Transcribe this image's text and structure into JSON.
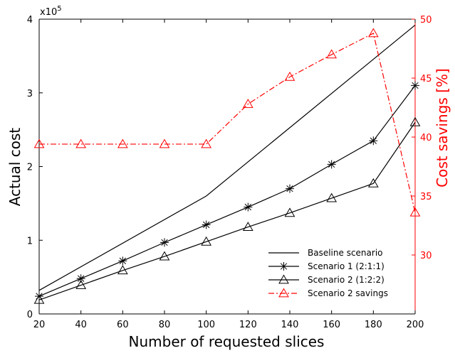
{
  "chart_data": {
    "type": "line",
    "xlabel": "Number of requested slices",
    "ylabel": "Actual cost",
    "y2label": "Cost savings [%]",
    "y_multiplier_label": "x10",
    "y_multiplier_exp": "5",
    "xlim": [
      20,
      200
    ],
    "ylim": [
      0,
      4
    ],
    "y2lim": [
      25,
      50
    ],
    "x_ticks": [
      20,
      40,
      60,
      80,
      100,
      120,
      140,
      160,
      180,
      200
    ],
    "y_ticks": [
      0,
      1,
      2,
      3,
      4
    ],
    "y2_ticks": [
      30,
      35,
      40,
      45,
      50
    ],
    "grid": false,
    "legend_position": "bottom-right",
    "x": [
      20,
      40,
      60,
      80,
      100,
      120,
      140,
      160,
      180,
      200
    ],
    "series": [
      {
        "name": "Baseline scenario",
        "axis": "left",
        "color": "#000000",
        "line_style": "solid",
        "marker": "none",
        "values": [
          0.32,
          null,
          null,
          null,
          1.6,
          null,
          null,
          null,
          null,
          3.92
        ]
      },
      {
        "name": "Scenario 1 (2:1:1)",
        "axis": "left",
        "color": "#000000",
        "line_style": "solid",
        "marker": "star",
        "values": [
          0.24,
          0.48,
          0.72,
          0.97,
          1.21,
          1.45,
          1.7,
          2.03,
          2.35,
          3.1
        ]
      },
      {
        "name": "Scenario 2 (1:2:2)",
        "axis": "left",
        "color": "#000000",
        "line_style": "solid",
        "marker": "triangle",
        "values": [
          0.19,
          0.39,
          0.59,
          0.78,
          0.98,
          1.18,
          1.37,
          1.57,
          1.77,
          2.6
        ]
      },
      {
        "name": "Scenario 2 savings",
        "axis": "right",
        "color": "#ff0000",
        "line_style": "dashdot",
        "marker": "triangle",
        "values": [
          39.4,
          39.4,
          39.4,
          39.4,
          39.4,
          42.8,
          45.1,
          47.0,
          48.8,
          33.6
        ]
      }
    ]
  }
}
